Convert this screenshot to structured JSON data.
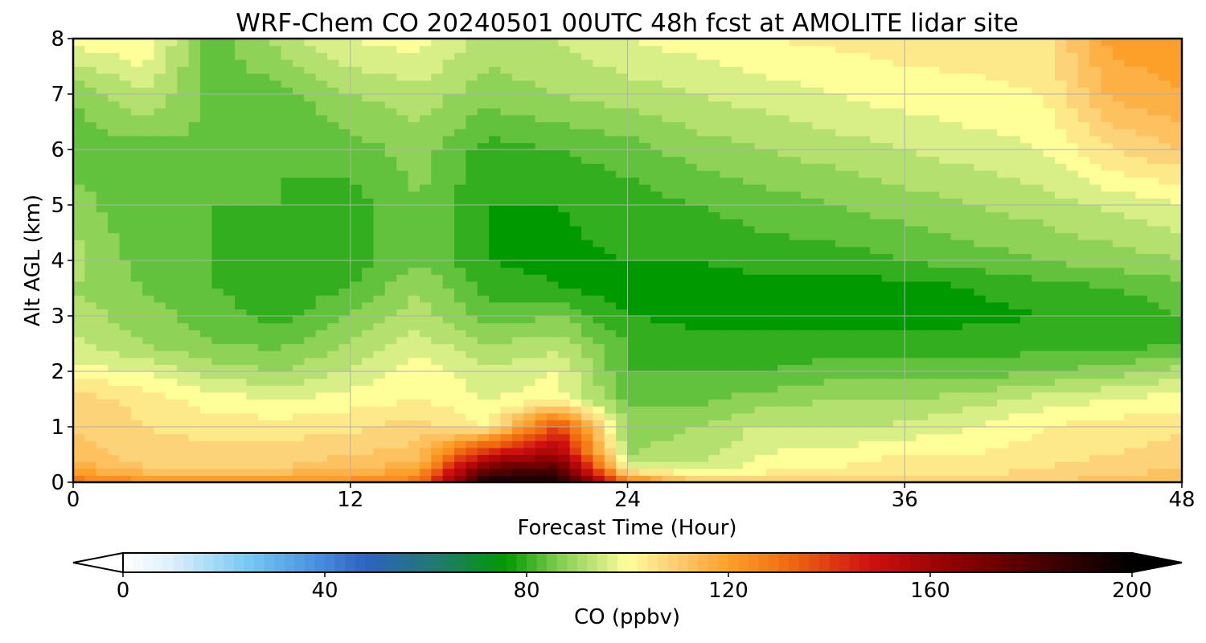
{
  "chart_data": {
    "type": "heatmap",
    "title": "WRF-Chem CO  20240501 00UTC 48h fcst at AMOLITE lidar site",
    "xlabel": "Forecast Time (Hour)",
    "ylabel": "Alt AGL (km)",
    "xlim": [
      0,
      48
    ],
    "ylim": [
      0,
      8
    ],
    "xticks": [
      "0",
      "12",
      "24",
      "36",
      "48"
    ],
    "yticks": [
      "0",
      "1",
      "2",
      "3",
      "4",
      "5",
      "6",
      "7",
      "8"
    ],
    "grid": true,
    "x": [
      0,
      3,
      6,
      9,
      12,
      15,
      18,
      21,
      24,
      27,
      30,
      33,
      36,
      39,
      42,
      45,
      48
    ],
    "y": [
      0,
      0.25,
      0.5,
      1,
      1.5,
      2,
      2.5,
      3,
      3.5,
      4,
      5,
      6,
      7,
      8
    ],
    "z": [
      [
        130,
        125,
        125,
        125,
        125,
        130,
        200,
        195,
        130,
        110,
        108,
        108,
        108,
        108,
        110,
        112,
        115
      ],
      [
        118,
        110,
        110,
        110,
        112,
        118,
        175,
        180,
        100,
        95,
        100,
        102,
        104,
        104,
        106,
        108,
        110
      ],
      [
        112,
        108,
        108,
        108,
        110,
        112,
        150,
        160,
        90,
        92,
        98,
        100,
        102,
        102,
        104,
        106,
        108
      ],
      [
        110,
        106,
        104,
        104,
        105,
        108,
        102,
        140,
        88,
        90,
        95,
        93,
        95,
        98,
        102,
        104,
        105
      ],
      [
        108,
        105,
        100,
        98,
        100,
        102,
        98,
        100,
        85,
        85,
        88,
        90,
        90,
        92,
        96,
        98,
        100
      ],
      [
        100,
        98,
        92,
        90,
        95,
        100,
        95,
        98,
        82,
        82,
        82,
        84,
        84,
        84,
        86,
        88,
        92
      ],
      [
        95,
        90,
        86,
        85,
        90,
        96,
        90,
        92,
        82,
        80,
        80,
        80,
        80,
        80,
        80,
        80,
        82
      ],
      [
        92,
        88,
        84,
        80,
        86,
        92,
        84,
        86,
        78,
        76,
        76,
        76,
        76,
        77,
        78,
        79,
        82
      ],
      [
        90,
        86,
        82,
        80,
        82,
        90,
        80,
        78,
        76,
        76,
        76,
        76,
        76,
        78,
        80,
        82,
        84
      ],
      [
        92,
        84,
        82,
        80,
        80,
        86,
        78,
        77,
        78,
        78,
        80,
        80,
        82,
        84,
        86,
        88,
        90
      ],
      [
        88,
        82,
        82,
        82,
        80,
        86,
        78,
        78,
        80,
        82,
        84,
        86,
        88,
        90,
        92,
        95,
        98
      ],
      [
        84,
        84,
        86,
        82,
        84,
        88,
        80,
        82,
        84,
        88,
        90,
        92,
        94,
        96,
        98,
        106,
        110
      ],
      [
        86,
        94,
        84,
        84,
        90,
        92,
        88,
        90,
        92,
        94,
        96,
        98,
        100,
        101,
        102,
        115,
        118
      ],
      [
        100,
        102,
        84,
        92,
        98,
        100,
        92,
        94,
        98,
        100,
        102,
        103,
        104,
        104,
        104,
        120,
        120
      ]
    ],
    "colorbar": {
      "label": "CO  (ppbv)",
      "ticks": [
        "0",
        "40",
        "80",
        "120",
        "160",
        "200"
      ],
      "range": [
        0,
        200
      ],
      "stops": [
        {
          "value": 0,
          "color": "#ffffff"
        },
        {
          "value": 10,
          "color": "#dbeffa"
        },
        {
          "value": 25,
          "color": "#73c8f4"
        },
        {
          "value": 38,
          "color": "#4a92e0"
        },
        {
          "value": 48,
          "color": "#2e62c2"
        },
        {
          "value": 62,
          "color": "#207a70"
        },
        {
          "value": 76,
          "color": "#009a00"
        },
        {
          "value": 86,
          "color": "#7ccc4c"
        },
        {
          "value": 96,
          "color": "#d8ee86"
        },
        {
          "value": 100,
          "color": "#ffff9a"
        },
        {
          "value": 108,
          "color": "#fdd37a"
        },
        {
          "value": 120,
          "color": "#fda02a"
        },
        {
          "value": 132,
          "color": "#f06a10"
        },
        {
          "value": 148,
          "color": "#d01010"
        },
        {
          "value": 166,
          "color": "#8a0000"
        },
        {
          "value": 200,
          "color": "#000000"
        }
      ]
    }
  }
}
